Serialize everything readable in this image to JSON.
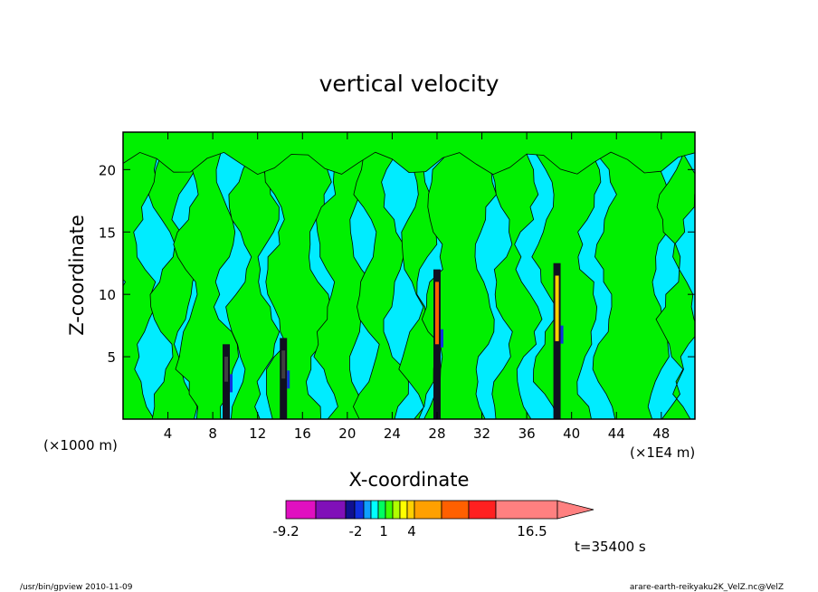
{
  "chart_data": {
    "type": "heatmap",
    "title": "vertical velocity",
    "xlabel": "X-coordinate",
    "ylabel": "Z-coordinate",
    "xunit_left": "(×1000 m)",
    "xunit_right": "(×1E4 m)",
    "xlim": [
      0,
      51
    ],
    "ylim": [
      0,
      23
    ],
    "x_ticks": [
      "4",
      "8",
      "12",
      "16",
      "20",
      "24",
      "28",
      "32",
      "36",
      "40",
      "44",
      "48"
    ],
    "y_ticks": [
      "5",
      "10",
      "15",
      "20"
    ],
    "colorbar": {
      "labels": [
        "-9.2",
        "-2",
        "1",
        "4",
        "16.5"
      ],
      "colors": [
        "#e010c0",
        "#8010b8",
        "#101090",
        "#1030e0",
        "#10a0ff",
        "#00ffff",
        "#00ff60",
        "#40ff00",
        "#b0ff00",
        "#ffff00",
        "#ffd000",
        "#ffa000",
        "#ff6000",
        "#ff2020",
        "#ff8080"
      ],
      "extend": "max"
    },
    "background_levels": {
      "negative_weak_color": "#00ecff",
      "positive_weak_color": "#00f000"
    },
    "updraft_columns_x": [
      9.2,
      14.3,
      28,
      38.7
    ]
  },
  "time_label": "t=35400 s",
  "footer_left": "/usr/bin/gpview  2010-11-09",
  "footer_right": "arare-earth-reikyaku2K_VelZ.nc@VelZ"
}
